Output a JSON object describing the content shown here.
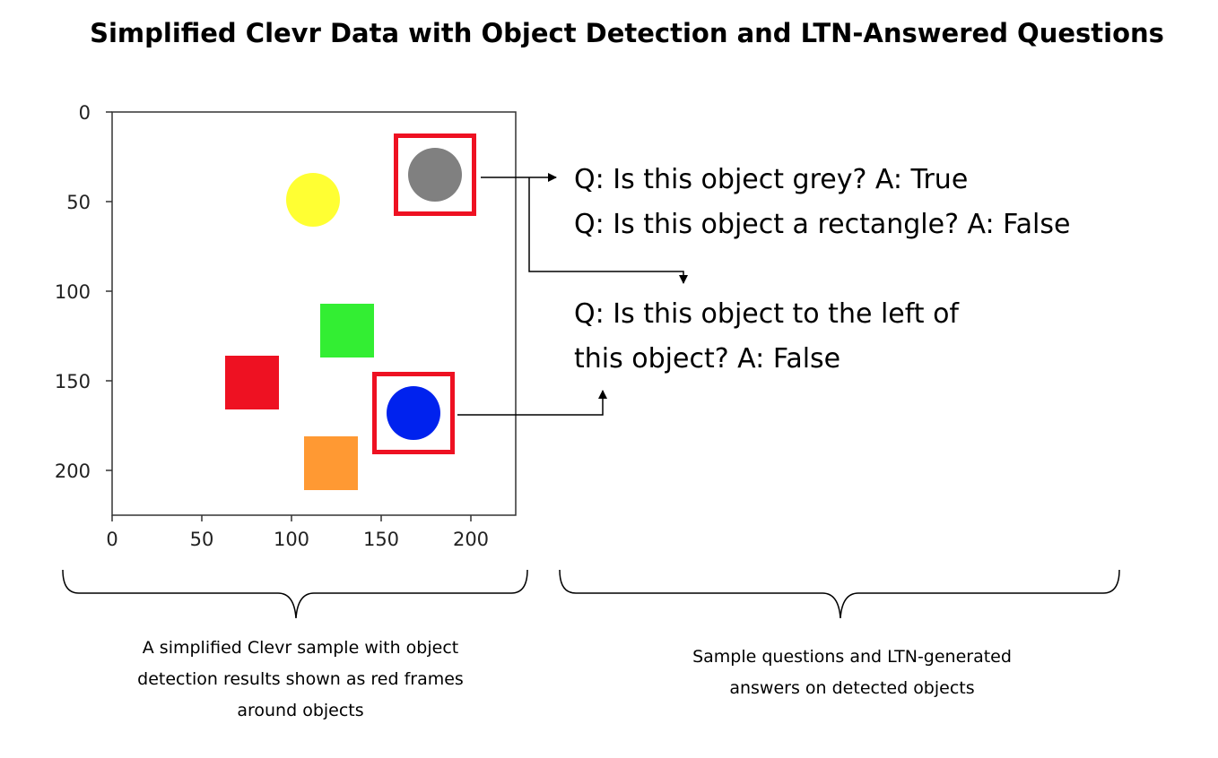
{
  "title": "Simplified Clevr Data with Object Detection and LTN-Answered Questions",
  "plot": {
    "xticks": [
      "0",
      "50",
      "100",
      "150",
      "200"
    ],
    "yticks": [
      "0",
      "50",
      "100",
      "150",
      "200"
    ],
    "xlim": [
      0,
      225
    ],
    "ylim": [
      225,
      0
    ],
    "objects": [
      {
        "name": "grey-circle",
        "shape": "circle",
        "color": "#808080",
        "cx": 180,
        "cy": 35,
        "size": 30
      },
      {
        "name": "yellow-circle",
        "shape": "circle",
        "color": "#ffff33",
        "cx": 112,
        "cy": 49,
        "size": 30
      },
      {
        "name": "green-square",
        "shape": "square",
        "color": "#33ee33",
        "cx": 131,
        "cy": 122,
        "size": 30
      },
      {
        "name": "red-square",
        "shape": "square",
        "color": "#ee1122",
        "cx": 78,
        "cy": 151,
        "size": 30
      },
      {
        "name": "blue-circle",
        "shape": "circle",
        "color": "#0022ee",
        "cx": 168,
        "cy": 168,
        "size": 30
      },
      {
        "name": "orange-square",
        "shape": "square",
        "color": "#ff9933",
        "cx": 122,
        "cy": 196,
        "size": 30
      }
    ],
    "detections": [
      "grey-circle",
      "blue-circle"
    ],
    "detection_color": "#ee1122"
  },
  "qa": {
    "q1": "Q: Is this object grey?  A: True",
    "q2": "Q: Is this object a rectangle? A: False",
    "q3_line1": "Q: Is this object to the left of",
    "q3_line2": "this object? A: False"
  },
  "captions": {
    "left": [
      "A simplified Clevr sample with object",
      "detection results shown as red frames",
      "around objects"
    ],
    "right": [
      "Sample questions and LTN-generated",
      "answers on detected objects"
    ]
  }
}
